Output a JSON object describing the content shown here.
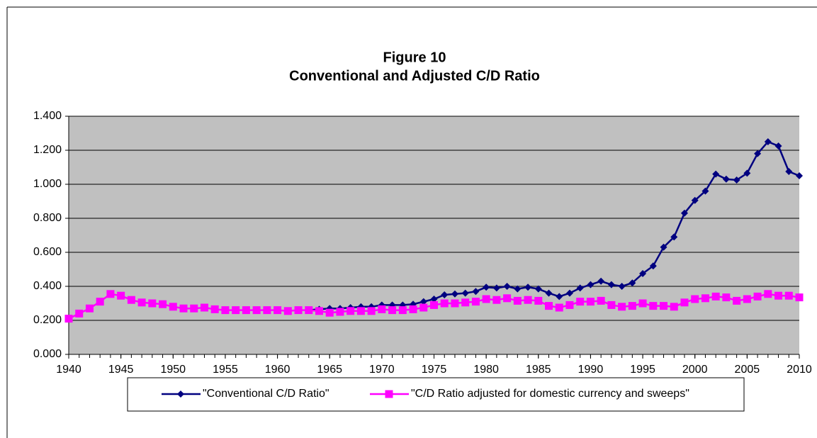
{
  "chart_data": {
    "type": "line",
    "title": "Figure 10",
    "subtitle": "Conventional and Adjusted C/D Ratio",
    "x": [
      1940,
      1941,
      1942,
      1943,
      1944,
      1945,
      1946,
      1947,
      1948,
      1949,
      1950,
      1951,
      1952,
      1953,
      1954,
      1955,
      1956,
      1957,
      1958,
      1959,
      1960,
      1961,
      1962,
      1963,
      1964,
      1965,
      1966,
      1967,
      1968,
      1969,
      1970,
      1971,
      1972,
      1973,
      1974,
      1975,
      1976,
      1977,
      1978,
      1979,
      1980,
      1981,
      1982,
      1983,
      1984,
      1985,
      1986,
      1987,
      1988,
      1989,
      1990,
      1991,
      1992,
      1993,
      1994,
      1995,
      1996,
      1997,
      1998,
      1999,
      2000,
      2001,
      2002,
      2003,
      2004,
      2005,
      2006,
      2007,
      2008,
      2009,
      2010
    ],
    "series": [
      {
        "name": "\"Conventional C/D Ratio\"",
        "color": "#000080",
        "marker": "diamond",
        "values": [
          null,
          null,
          null,
          null,
          null,
          null,
          null,
          null,
          null,
          null,
          null,
          null,
          null,
          null,
          null,
          null,
          null,
          null,
          null,
          null,
          null,
          null,
          null,
          0.26,
          0.265,
          0.27,
          0.27,
          0.275,
          0.28,
          0.28,
          0.29,
          0.29,
          0.29,
          0.295,
          0.31,
          0.325,
          0.35,
          0.355,
          0.36,
          0.37,
          0.395,
          0.39,
          0.4,
          0.385,
          0.395,
          0.385,
          0.36,
          0.34,
          0.36,
          0.39,
          0.41,
          0.43,
          0.41,
          0.4,
          0.42,
          0.475,
          0.52,
          0.63,
          0.69,
          0.83,
          0.905,
          0.96,
          1.06,
          1.03,
          1.025,
          1.065,
          1.18,
          1.25,
          1.225,
          1.075,
          1.05
        ]
      },
      {
        "name": "\"C/D Ratio adjusted for domestic currency and sweeps\"",
        "color": "#ff00ff",
        "marker": "square",
        "values": [
          0.21,
          0.24,
          0.27,
          0.31,
          0.355,
          0.345,
          0.32,
          0.305,
          0.3,
          0.295,
          0.28,
          0.27,
          0.27,
          0.275,
          0.265,
          0.26,
          0.26,
          0.26,
          0.26,
          0.26,
          0.26,
          0.255,
          0.26,
          0.26,
          0.255,
          0.245,
          0.25,
          0.255,
          0.255,
          0.255,
          0.265,
          0.26,
          0.26,
          0.265,
          0.275,
          0.29,
          0.3,
          0.3,
          0.305,
          0.31,
          0.325,
          0.32,
          0.33,
          0.315,
          0.32,
          0.315,
          0.285,
          0.275,
          0.29,
          0.31,
          0.31,
          0.315,
          0.29,
          0.28,
          0.285,
          0.3,
          0.285,
          0.285,
          0.28,
          0.305,
          0.325,
          0.33,
          0.34,
          0.335,
          0.315,
          0.325,
          0.34,
          0.355,
          0.345,
          0.345,
          0.335
        ]
      }
    ],
    "xlim": [
      1940,
      2010
    ],
    "xticks": [
      1940,
      1945,
      1950,
      1955,
      1960,
      1965,
      1970,
      1975,
      1980,
      1985,
      1990,
      1995,
      2000,
      2005,
      2010
    ],
    "ylim": [
      0,
      1.4
    ],
    "yticks": [
      {
        "value": 0,
        "label": "0.000"
      },
      {
        "value": 0.2,
        "label": "0.200"
      },
      {
        "value": 0.4,
        "label": "0.400"
      },
      {
        "value": 0.6,
        "label": "0.600"
      },
      {
        "value": 0.8,
        "label": "0.800"
      },
      {
        "value": 1.0,
        "label": "1.000"
      },
      {
        "value": 1.2,
        "label": "1.200"
      },
      {
        "value": 1.4,
        "label": "1.400"
      }
    ],
    "grid": true,
    "plot_background": "#c0c0c0",
    "legend": "bottom"
  }
}
